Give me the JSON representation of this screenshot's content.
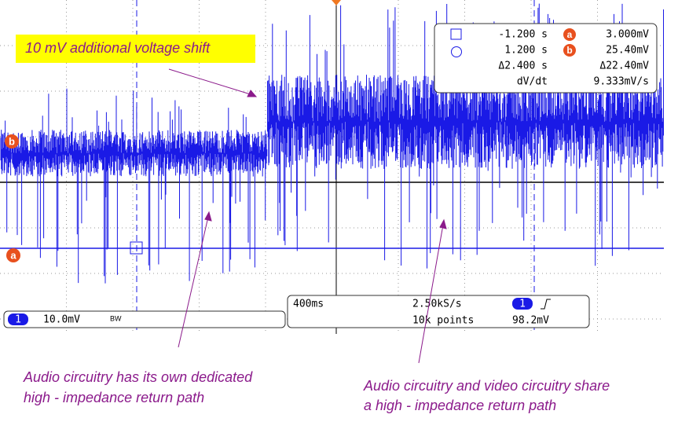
{
  "callout": "10 mV additional voltage shift",
  "markers": {
    "a": "a",
    "b": "b"
  },
  "readout": {
    "rows": [
      {
        "time": "-1.200 s",
        "marker": "a",
        "value": "3.000mV"
      },
      {
        "time": "1.200 s",
        "marker": "b",
        "value": "25.40mV"
      },
      {
        "time": "Δ2.400 s",
        "value": "Δ22.40mV"
      },
      {
        "time": "dV/dt",
        "value": "9.333mV/s"
      }
    ]
  },
  "status": {
    "channel": "1",
    "scale": "10.0mV",
    "bw": "BW",
    "timebase": "400ms",
    "rate": "2.50kS/s",
    "points": "10k points",
    "trigger_channel": "1",
    "trigger_level": "98.2mV"
  },
  "annotations": {
    "left": [
      "Audio circuitry has its own dedicated",
      "high - impedance return path"
    ],
    "right": [
      "Audio circuitry and video circuitry share",
      "a high - impedance return path"
    ]
  }
}
